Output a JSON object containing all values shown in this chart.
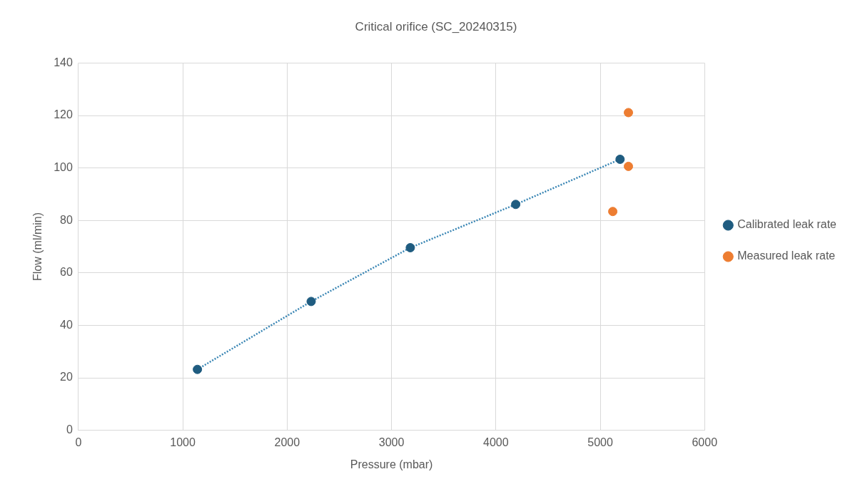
{
  "chart_data": {
    "type": "scatter",
    "title": "Critical orifice (SC_20240315)",
    "xlabel": "Pressure (mbar)",
    "ylabel": "Flow (ml/min)",
    "xlim": [
      0,
      6000
    ],
    "xticks": [
      0,
      1000,
      2000,
      3000,
      4000,
      5000,
      6000
    ],
    "ylim": [
      0,
      140
    ],
    "yticks": [
      0,
      20,
      40,
      60,
      80,
      100,
      120,
      140
    ],
    "grid": true,
    "legend": "right",
    "marker": "circle",
    "series": [
      {
        "name": "Calibrated leak rate",
        "color": "#1f5c80",
        "x": [
          1140,
          2230,
          3180,
          4190,
          5190
        ],
        "values": [
          23.2,
          49.1,
          69.6,
          86.1,
          103.3
        ]
      },
      {
        "name": "Measured leak rate",
        "color": "#ed7d31",
        "x": [
          5270,
          5270,
          5120
        ],
        "values": [
          121.1,
          100.6,
          83.4
        ]
      },
      {
        "type": "line",
        "color": "#3a86b4",
        "line_style": "dotted",
        "marker": "none",
        "x": [
          1140,
          2230,
          3180,
          4190,
          5190
        ],
        "values": [
          23.2,
          49.1,
          69.6,
          86.1,
          103.3
        ]
      }
    ]
  }
}
